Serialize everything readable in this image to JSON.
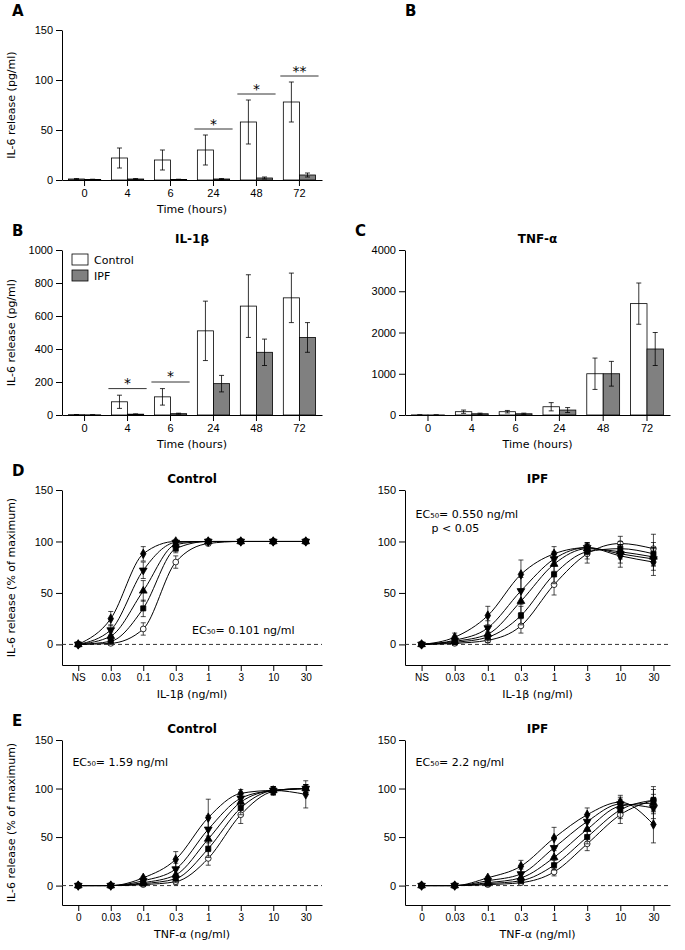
{
  "chart_data": [
    {
      "type": "bar",
      "xlabel": "Time (hours)",
      "ylabel": "IL-6 release (pg/ml)",
      "categories": [
        "0",
        "4",
        "6",
        "24",
        "48",
        "72"
      ],
      "ylim": [
        0,
        150
      ],
      "yticks": [
        0,
        50,
        100,
        150
      ],
      "series": [
        {
          "color": "white",
          "values": [
            1,
            22,
            20,
            30,
            58,
            78
          ],
          "errors": [
            0.5,
            10,
            10,
            15,
            22,
            20
          ]
        },
        {
          "color": "#808080",
          "values": [
            0.5,
            1,
            0.5,
            1,
            2,
            5
          ],
          "errors": [
            0.3,
            0.5,
            0.3,
            0.5,
            1,
            2
          ]
        }
      ],
      "annotations": [
        {
          "text": "A"
        },
        {
          "text": "B"
        },
        {
          "text": "*",
          "category": "24"
        },
        {
          "text": "*",
          "category": "48"
        },
        {
          "text": "**",
          "category": "72"
        }
      ]
    },
    {
      "type": "bar",
      "title": "IL-1β",
      "xlabel": "Time (hours)",
      "ylabel": "IL-6 release (pg/ml)",
      "categories": [
        "0",
        "4",
        "6",
        "24",
        "48",
        "72"
      ],
      "ylim": [
        0,
        1000
      ],
      "yticks": [
        0,
        200,
        400,
        600,
        800,
        1000
      ],
      "legend": "upper left",
      "series": [
        {
          "name": "Control",
          "color": "white",
          "values": [
            2,
            80,
            110,
            510,
            660,
            710
          ],
          "errors": [
            1,
            40,
            50,
            180,
            190,
            150
          ]
        },
        {
          "name": "IPF",
          "color": "#808080",
          "values": [
            1,
            5,
            8,
            190,
            380,
            470
          ],
          "errors": [
            0.5,
            2,
            3,
            50,
            80,
            90
          ]
        }
      ],
      "annotations": [
        {
          "text": "B"
        },
        {
          "text": "*",
          "category": "4"
        },
        {
          "text": "*",
          "category": "6"
        }
      ]
    },
    {
      "type": "bar",
      "title": "TNF-α",
      "xlabel": "Time (hours)",
      "categories": [
        "0",
        "4",
        "6",
        "24",
        "48",
        "72"
      ],
      "ylim": [
        0,
        4000
      ],
      "yticks": [
        0,
        1000,
        2000,
        3000,
        4000
      ],
      "series": [
        {
          "color": "white",
          "values": [
            2,
            80,
            80,
            200,
            1000,
            2700
          ],
          "errors": [
            1,
            40,
            30,
            100,
            380,
            500
          ]
        },
        {
          "color": "#808080",
          "values": [
            1,
            30,
            30,
            120,
            1000,
            1600
          ],
          "errors": [
            0.5,
            15,
            15,
            60,
            300,
            400
          ]
        }
      ],
      "annotations": [
        {
          "text": "C"
        }
      ]
    },
    {
      "type": "line",
      "title": "Control",
      "xlabel": "IL-1β (ng/ml)",
      "ylabel": "IL-6 release (% of maximum)",
      "categories": [
        "NS",
        "0.03",
        "0.1",
        "0.3",
        "1",
        "3",
        "10",
        "30"
      ],
      "ylim": [
        -20,
        150
      ],
      "yticks": [
        0,
        50,
        100,
        150
      ],
      "reference_line": 0,
      "series": [
        {
          "color": "black",
          "marker": "circle-open",
          "values": [
            0,
            1,
            15,
            80,
            98,
            100,
            100,
            100
          ],
          "errors": [
            1,
            2,
            6,
            6,
            2,
            1,
            1,
            2
          ]
        },
        {
          "color": "black",
          "marker": "square",
          "values": [
            0,
            3,
            35,
            93,
            100,
            100,
            100,
            100
          ],
          "errors": [
            1,
            3,
            8,
            4,
            1,
            1,
            1,
            1
          ]
        },
        {
          "color": "black",
          "marker": "triangle-up",
          "values": [
            0,
            8,
            52,
            97,
            100,
            100,
            100,
            100
          ],
          "errors": [
            1,
            4,
            10,
            3,
            1,
            1,
            1,
            1
          ]
        },
        {
          "color": "black",
          "marker": "triangle-down",
          "values": [
            0,
            14,
            72,
            99,
            100,
            100,
            100,
            100
          ],
          "errors": [
            1,
            5,
            8,
            2,
            1,
            1,
            1,
            1
          ]
        },
        {
          "color": "black",
          "marker": "diamond",
          "values": [
            0,
            25,
            88,
            100,
            100,
            100,
            100,
            100
          ],
          "errors": [
            1,
            7,
            7,
            2,
            1,
            1,
            1,
            1
          ]
        }
      ],
      "annotations": [
        {
          "text": "D"
        },
        {
          "text": "EC₅₀= 0.101 ng/ml"
        }
      ]
    },
    {
      "type": "line",
      "title": "IPF",
      "xlabel": "IL-1β (ng/ml)",
      "categories": [
        "NS",
        "0.03",
        "0.1",
        "0.3",
        "1",
        "3",
        "10",
        "30"
      ],
      "ylim": [
        -20,
        150
      ],
      "yticks": [
        0,
        50,
        100,
        150
      ],
      "reference_line": 0,
      "series": [
        {
          "color": "black",
          "marker": "circle-open",
          "values": [
            0,
            1,
            4,
            18,
            58,
            88,
            98,
            93
          ],
          "errors": [
            1,
            2,
            4,
            7,
            10,
            9,
            7,
            14
          ]
        },
        {
          "color": "black",
          "marker": "square",
          "values": [
            0,
            2,
            7,
            28,
            68,
            90,
            93,
            88
          ],
          "errors": [
            1,
            2,
            5,
            9,
            9,
            7,
            7,
            11
          ]
        },
        {
          "color": "black",
          "marker": "triangle-up",
          "values": [
            0,
            3,
            10,
            42,
            78,
            93,
            90,
            85
          ],
          "errors": [
            1,
            2,
            6,
            11,
            7,
            5,
            7,
            9
          ]
        },
        {
          "color": "black",
          "marker": "triangle-down",
          "values": [
            0,
            4,
            16,
            52,
            83,
            94,
            88,
            83
          ],
          "errors": [
            1,
            3,
            7,
            13,
            7,
            5,
            9,
            11
          ]
        },
        {
          "color": "black",
          "marker": "diamond",
          "values": [
            0,
            7,
            28,
            68,
            88,
            94,
            86,
            80
          ],
          "errors": [
            1,
            4,
            9,
            14,
            7,
            5,
            11,
            13
          ]
        }
      ],
      "annotations": [
        {
          "text": "EC₅₀= 0.550 ng/ml"
        },
        {
          "text": "p < 0.05"
        }
      ]
    },
    {
      "type": "line",
      "title": "Control",
      "xlabel": "TNF-α (ng/ml)",
      "ylabel": "IL-6 release (% of maximum)",
      "categories": [
        "0",
        "0.03",
        "0.1",
        "0.3",
        "1",
        "3",
        "10",
        "30"
      ],
      "ylim": [
        -20,
        150
      ],
      "yticks": [
        0,
        50,
        100,
        150
      ],
      "reference_line": 0,
      "series": [
        {
          "color": "black",
          "marker": "circle-open",
          "values": [
            0,
            0,
            1,
            4,
            28,
            73,
            97,
            100
          ],
          "errors": [
            1,
            1,
            1,
            3,
            7,
            9,
            4,
            4
          ]
        },
        {
          "color": "black",
          "marker": "square",
          "values": [
            0,
            0,
            2,
            7,
            38,
            80,
            98,
            100
          ],
          "errors": [
            1,
            1,
            1,
            4,
            9,
            7,
            4,
            4
          ]
        },
        {
          "color": "black",
          "marker": "triangle-up",
          "values": [
            0,
            0,
            3,
            11,
            48,
            86,
            98,
            100
          ],
          "errors": [
            1,
            1,
            1,
            5,
            11,
            5,
            4,
            4
          ]
        },
        {
          "color": "black",
          "marker": "triangle-down",
          "values": [
            0,
            0,
            5,
            17,
            58,
            90,
            98,
            100
          ],
          "errors": [
            1,
            1,
            1,
            6,
            14,
            4,
            4,
            4
          ]
        },
        {
          "color": "black",
          "marker": "diamond",
          "values": [
            0,
            0,
            8,
            27,
            70,
            95,
            98,
            94
          ],
          "errors": [
            1,
            1,
            1,
            8,
            19,
            4,
            4,
            14
          ]
        }
      ],
      "annotations": [
        {
          "text": "E"
        },
        {
          "text": "EC₅₀= 1.59 ng/ml"
        }
      ]
    },
    {
      "type": "line",
      "title": "IPF",
      "xlabel": "TNF-α (ng/ml)",
      "categories": [
        "0",
        "0.03",
        "0.1",
        "0.3",
        "1",
        "3",
        "10",
        "30"
      ],
      "ylim": [
        -20,
        150
      ],
      "yticks": [
        0,
        50,
        100,
        150
      ],
      "reference_line": 0,
      "series": [
        {
          "color": "black",
          "marker": "circle-open",
          "values": [
            0,
            0,
            1,
            3,
            14,
            43,
            73,
            88
          ],
          "errors": [
            1,
            1,
            1,
            2,
            4,
            7,
            9,
            14
          ]
        },
        {
          "color": "black",
          "marker": "square",
          "values": [
            0,
            0,
            2,
            5,
            21,
            50,
            78,
            88
          ],
          "errors": [
            1,
            1,
            1,
            3,
            5,
            7,
            9,
            11
          ]
        },
        {
          "color": "black",
          "marker": "triangle-up",
          "values": [
            0,
            0,
            3,
            8,
            29,
            58,
            82,
            85
          ],
          "errors": [
            1,
            1,
            1,
            4,
            7,
            7,
            7,
            9
          ]
        },
        {
          "color": "black",
          "marker": "triangle-down",
          "values": [
            0,
            0,
            5,
            12,
            39,
            66,
            84,
            80
          ],
          "errors": [
            1,
            1,
            1,
            5,
            9,
            7,
            7,
            11
          ]
        },
        {
          "color": "black",
          "marker": "diamond",
          "values": [
            0,
            0,
            8,
            20,
            49,
            73,
            86,
            63
          ],
          "errors": [
            1,
            1,
            1,
            6,
            11,
            7,
            7,
            19
          ]
        }
      ],
      "annotations": [
        {
          "text": "EC₅₀= 2.2 ng/ml"
        }
      ]
    }
  ]
}
